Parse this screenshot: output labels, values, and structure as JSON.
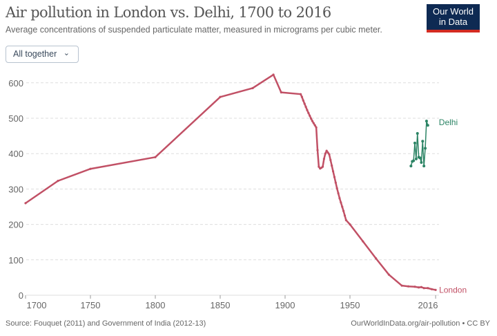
{
  "header": {
    "title": "Air pollution in London vs. Delhi, 1700 to 2016",
    "subtitle": "Average concentrations of suspended particulate matter, measured in micrograms per cubic meter.",
    "logo": "Our World in Data",
    "logo_line1": "Our World",
    "logo_line2": "in Data"
  },
  "controls": {
    "dropdown_label": "All together",
    "dropdown_icon": "chevron-down-icon"
  },
  "footer": {
    "source": "Source: Fouquet (2011) and Government of India (2012-13)",
    "link": "OurWorldInData.org/air-pollution • CC BY"
  },
  "colors": {
    "london": "#c15065",
    "delhi": "#2c8465",
    "logo_bg": "#0e2a53",
    "logo_accent": "#d42b21"
  },
  "chart_data": {
    "type": "line",
    "title": "Air pollution in London vs. Delhi, 1700 to 2016",
    "xlim": [
      1700,
      2016
    ],
    "ylim": [
      0,
      620
    ],
    "x_ticks": [
      1700,
      1750,
      1800,
      1850,
      1900,
      1950,
      2016
    ],
    "y_ticks": [
      0,
      100,
      200,
      300,
      400,
      500,
      600
    ],
    "grid": "horizontal dashed",
    "legend": "inline labels at line ends",
    "series": [
      {
        "name": "London",
        "points": [
          [
            1700,
            260
          ],
          [
            1725,
            323
          ],
          [
            1750,
            357
          ],
          [
            1800,
            390
          ],
          [
            1850,
            560
          ],
          [
            1875,
            585
          ],
          [
            1891,
            623
          ],
          [
            1897,
            573
          ],
          [
            1912,
            568
          ],
          [
            1913,
            560
          ],
          [
            1914,
            550
          ],
          [
            1915,
            541
          ],
          [
            1916,
            532
          ],
          [
            1917,
            523
          ],
          [
            1918,
            515
          ],
          [
            1919,
            507
          ],
          [
            1920,
            499
          ],
          [
            1921,
            492
          ],
          [
            1922,
            486
          ],
          [
            1923,
            480
          ],
          [
            1924,
            474
          ],
          [
            1925,
            410
          ],
          [
            1926,
            363
          ],
          [
            1927,
            358
          ],
          [
            1928,
            360
          ],
          [
            1929,
            363
          ],
          [
            1930,
            385
          ],
          [
            1931,
            400
          ],
          [
            1932,
            408
          ],
          [
            1933,
            403
          ],
          [
            1934,
            398
          ],
          [
            1935,
            382
          ],
          [
            1936,
            366
          ],
          [
            1937,
            350
          ],
          [
            1938,
            334
          ],
          [
            1939,
            318
          ],
          [
            1940,
            302
          ],
          [
            1941,
            288
          ],
          [
            1942,
            274
          ],
          [
            1943,
            262
          ],
          [
            1944,
            250
          ],
          [
            1945,
            238
          ],
          [
            1946,
            225
          ],
          [
            1947,
            212
          ],
          [
            1950,
            200
          ],
          [
            1960,
            152
          ],
          [
            1970,
            104
          ],
          [
            1980,
            58
          ],
          [
            1990,
            27
          ],
          [
            1995,
            25
          ],
          [
            2000,
            24
          ],
          [
            2003,
            22
          ],
          [
            2005,
            23
          ],
          [
            2007,
            20
          ],
          [
            2010,
            20
          ],
          [
            2013,
            17
          ],
          [
            2016,
            15
          ]
        ]
      },
      {
        "name": "Delhi",
        "points": [
          [
            1997,
            365
          ],
          [
            1998,
            378
          ],
          [
            1999,
            380
          ],
          [
            2000,
            430
          ],
          [
            2001,
            385
          ],
          [
            2002,
            457
          ],
          [
            2003,
            390
          ],
          [
            2004,
            388
          ],
          [
            2005,
            375
          ],
          [
            2006,
            435
          ],
          [
            2007,
            365
          ],
          [
            2008,
            415
          ],
          [
            2009,
            492
          ],
          [
            2010,
            480
          ]
        ]
      }
    ]
  }
}
